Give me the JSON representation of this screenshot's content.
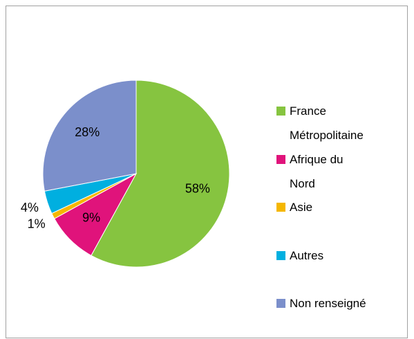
{
  "chart_data": {
    "type": "pie",
    "categories": [
      "France Métropolitaine",
      "Afrique du Nord",
      "Asie",
      "Autres",
      "Non renseigné"
    ],
    "values": [
      58,
      9,
      1,
      4,
      28
    ],
    "value_labels": [
      "58%",
      "9%",
      "1%",
      "4%",
      "28%"
    ],
    "colors": [
      "#86c440",
      "#e0137b",
      "#f5b700",
      "#00afe0",
      "#7b8fcb"
    ],
    "legend": "right"
  }
}
